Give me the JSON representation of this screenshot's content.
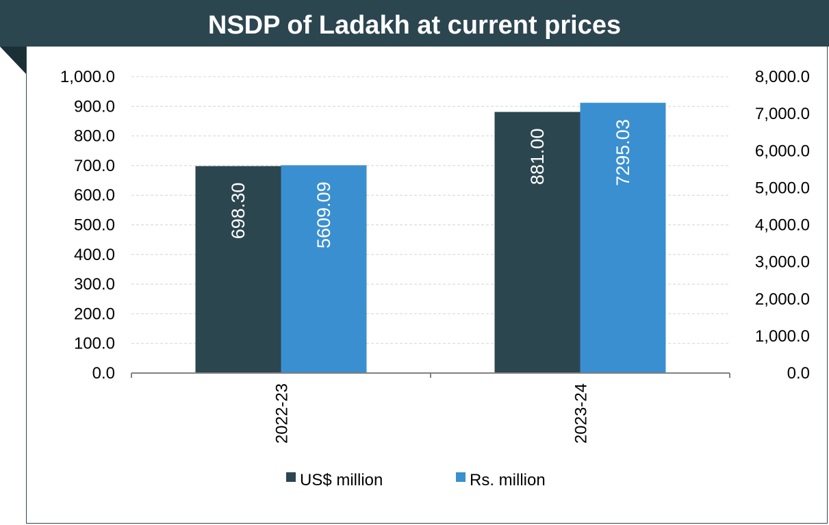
{
  "title": "NSDP of Ladakh at current prices",
  "chart_data": {
    "type": "bar",
    "title": "NSDP of Ladakh at current prices",
    "categories": [
      "2022-23",
      "2023-24"
    ],
    "series": [
      {
        "name": "US$ million",
        "axis": "left",
        "color": "#2c4650",
        "values": [
          698.3,
          881.0
        ],
        "labels": [
          "698.30",
          "881.00"
        ]
      },
      {
        "name": "Rs. million",
        "axis": "right",
        "color": "#3a8fd0",
        "values": [
          5609.09,
          7295.03
        ],
        "labels": [
          "5609.09",
          "7295.03"
        ]
      }
    ],
    "y_left": {
      "min": 0,
      "max": 1000,
      "step": 100,
      "ticks": [
        "0.0",
        "100.0",
        "200.0",
        "300.0",
        "400.0",
        "500.0",
        "600.0",
        "700.0",
        "800.0",
        "900.0",
        "1,000.0"
      ]
    },
    "y_right": {
      "min": 0,
      "max": 8000,
      "step": 1000,
      "ticks": [
        "0.0",
        "1,000.0",
        "2,000.0",
        "3,000.0",
        "4,000.0",
        "5,000.0",
        "6,000.0",
        "7,000.0",
        "8,000.0"
      ]
    },
    "grid": true,
    "legend_position": "bottom"
  }
}
